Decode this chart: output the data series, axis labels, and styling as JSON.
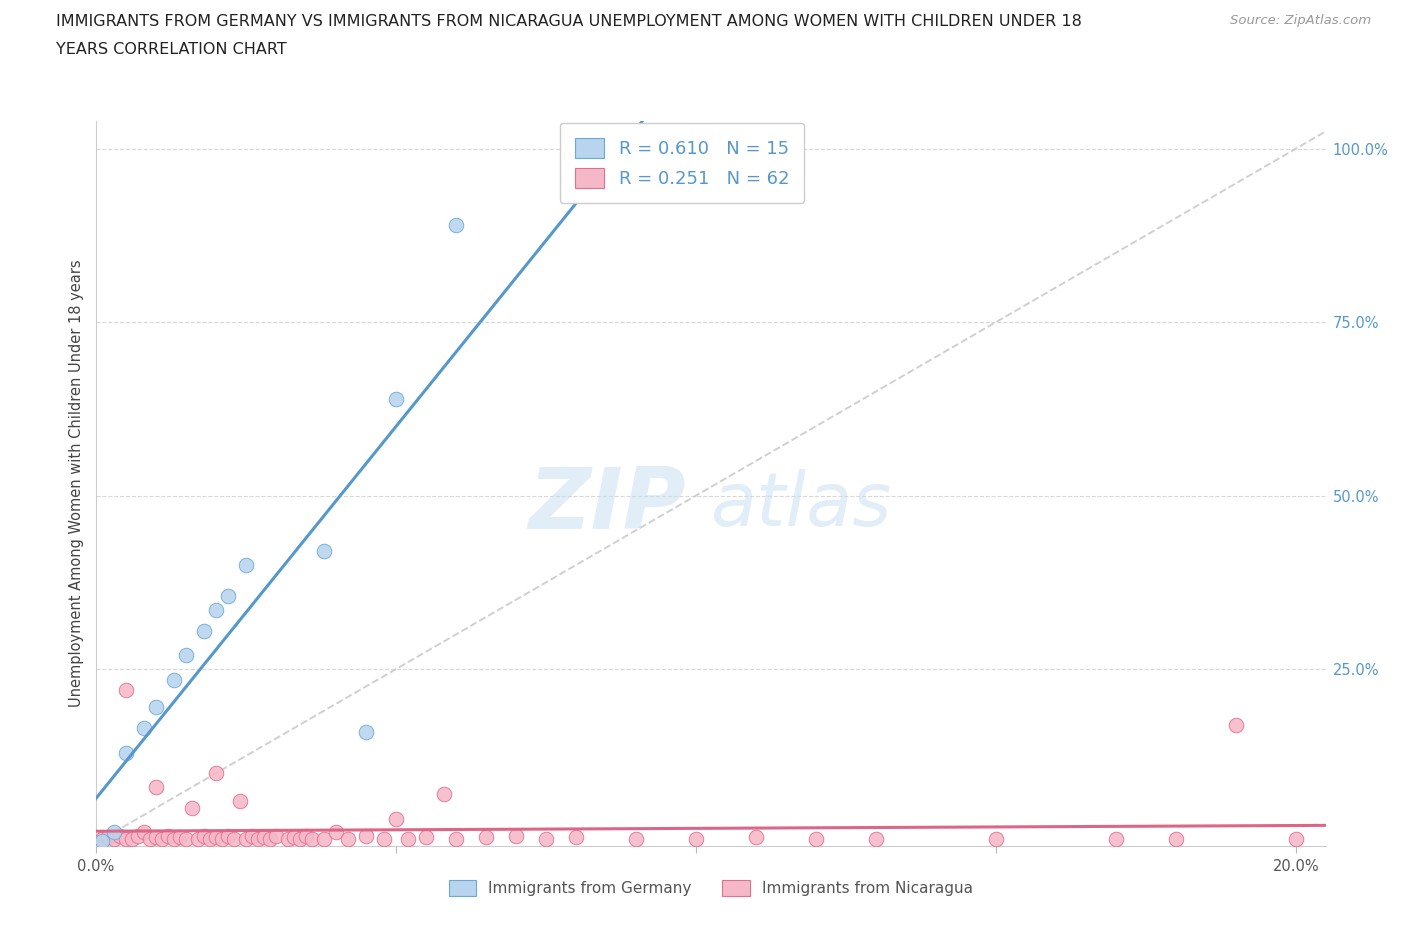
{
  "title_line1": "IMMIGRANTS FROM GERMANY VS IMMIGRANTS FROM NICARAGUA UNEMPLOYMENT AMONG WOMEN WITH CHILDREN UNDER 18",
  "title_line2": "YEARS CORRELATION CHART",
  "source": "Source: ZipAtlas.com",
  "ylabel": "Unemployment Among Women with Children Under 18 years",
  "right_yticks": [
    "100.0%",
    "75.0%",
    "50.0%",
    "25.0%"
  ],
  "right_ytick_vals": [
    1.0,
    0.75,
    0.5,
    0.25
  ],
  "legend_germany": "Immigrants from Germany",
  "legend_nicaragua": "Immigrants from Nicaragua",
  "R_germany": 0.61,
  "N_germany": 15,
  "R_nicaragua": 0.251,
  "N_nicaragua": 62,
  "color_germany_fill": "#b8d4ee",
  "color_nicaragua_fill": "#f5b8c8",
  "color_germany_edge": "#6aaad4",
  "color_nicaragua_edge": "#e07090",
  "color_germany_line": "#5599cc",
  "color_nicaragua_line": "#dd6688",
  "color_diagonal": "#c8c8c8",
  "germany_x": [
    0.001,
    0.003,
    0.005,
    0.008,
    0.01,
    0.013,
    0.015,
    0.018,
    0.02,
    0.022,
    0.025,
    0.038,
    0.045,
    0.05,
    0.06
  ],
  "germany_y": [
    0.003,
    0.015,
    0.13,
    0.165,
    0.195,
    0.235,
    0.27,
    0.305,
    0.335,
    0.355,
    0.4,
    0.42,
    0.16,
    0.64,
    0.89
  ],
  "nicaragua_x": [
    0.001,
    0.002,
    0.003,
    0.004,
    0.005,
    0.005,
    0.006,
    0.007,
    0.008,
    0.009,
    0.01,
    0.01,
    0.011,
    0.012,
    0.013,
    0.014,
    0.015,
    0.016,
    0.017,
    0.018,
    0.019,
    0.02,
    0.02,
    0.021,
    0.022,
    0.023,
    0.024,
    0.025,
    0.026,
    0.027,
    0.028,
    0.029,
    0.03,
    0.032,
    0.033,
    0.034,
    0.035,
    0.036,
    0.038,
    0.04,
    0.042,
    0.045,
    0.048,
    0.05,
    0.052,
    0.055,
    0.058,
    0.06,
    0.065,
    0.07,
    0.075,
    0.08,
    0.09,
    0.1,
    0.11,
    0.12,
    0.13,
    0.15,
    0.17,
    0.18,
    0.19,
    0.2
  ],
  "nicaragua_y": [
    0.005,
    0.008,
    0.005,
    0.01,
    0.005,
    0.22,
    0.005,
    0.01,
    0.015,
    0.005,
    0.008,
    0.08,
    0.005,
    0.01,
    0.005,
    0.008,
    0.005,
    0.05,
    0.005,
    0.01,
    0.005,
    0.008,
    0.1,
    0.005,
    0.01,
    0.005,
    0.06,
    0.005,
    0.01,
    0.005,
    0.008,
    0.005,
    0.01,
    0.005,
    0.008,
    0.005,
    0.01,
    0.005,
    0.005,
    0.015,
    0.005,
    0.01,
    0.005,
    0.035,
    0.005,
    0.008,
    0.07,
    0.005,
    0.008,
    0.01,
    0.005,
    0.008,
    0.005,
    0.005,
    0.008,
    0.005,
    0.005,
    0.005,
    0.005,
    0.005,
    0.17,
    0.005
  ],
  "xlim": [
    0.0,
    0.205
  ],
  "ylim": [
    -0.005,
    1.04
  ],
  "watermark_text": "ZIPatlas",
  "background_color": "#ffffff",
  "grid_color": "#d8d8d8",
  "title_fontsize": 11.5,
  "source_fontsize": 9.5,
  "tick_label_fontsize": 10.5
}
